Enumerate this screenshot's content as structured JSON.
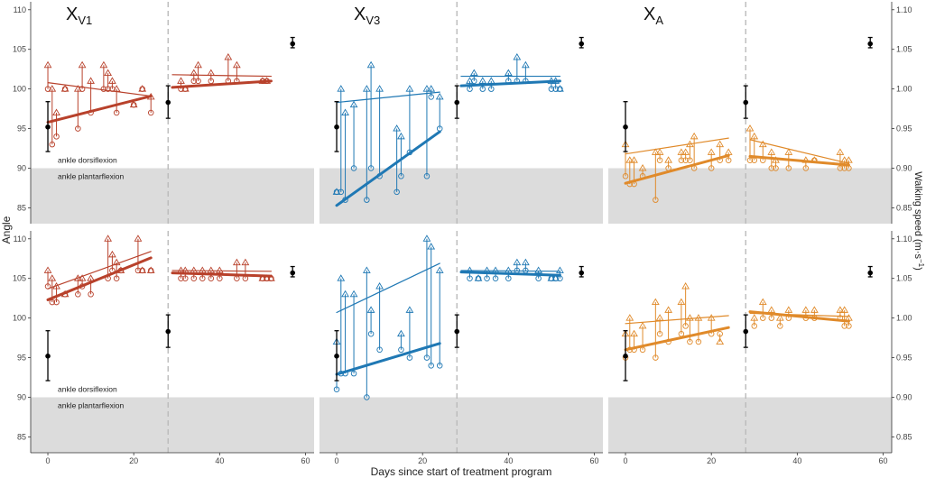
{
  "chart_data": {
    "type": "scatter",
    "title": "",
    "xlabel": "Days since start of treatment program",
    "ylabel_left": "Angle",
    "ylabel_right": "Walking speed (m·s",
    "ylabel_right_sup": "−1",
    "ylabel_right_close": ")",
    "xlim": [
      -4,
      62
    ],
    "x_ticks": [
      "0",
      "20",
      "40",
      "60"
    ],
    "x_tick_values": [
      0,
      20,
      40,
      60
    ],
    "phase_split_day": 28,
    "rows": [
      {
        "ylim": [
          83,
          111
        ],
        "y_ticks": [
          "85",
          "90",
          "95",
          "100",
          "105",
          "110"
        ],
        "y_tick_values": [
          85,
          90,
          95,
          100,
          105,
          110
        ],
        "right_ticks": [
          "0.85",
          "0.90",
          "0.95",
          "1.00",
          "1.05",
          "1.10"
        ],
        "shaded_below": 90,
        "annot_upper": "ankle dorsiflexion",
        "annot_lower": "ankle plantarflexion"
      },
      {
        "ylim": [
          83,
          111
        ],
        "y_ticks": [
          "85",
          "90",
          "95",
          "100",
          "105",
          "110"
        ],
        "y_tick_values": [
          85,
          90,
          95,
          100,
          105,
          110
        ],
        "right_ticks": [
          "0.85",
          "0.90",
          "0.95",
          "1.00",
          "1.05",
          "1.10"
        ],
        "shaded_below": 90,
        "annot_upper": "ankle dorsiflexion",
        "annot_lower": "ankle plantarflexion"
      }
    ],
    "columns": [
      {
        "label": "X",
        "sub": "V1",
        "color": "#b8412b"
      },
      {
        "label": "X",
        "sub": "V3",
        "color": "#1f78b4"
      },
      {
        "label": "X",
        "sub": "A",
        "color": "#e08a2a"
      }
    ],
    "speed_bars": {
      "pre": {
        "day": 0,
        "mean": 0.952,
        "lo": 0.921,
        "hi": 0.984
      },
      "mid": {
        "day": 28,
        "mean": 0.983,
        "lo": 0.963,
        "hi": 1.004
      },
      "post": {
        "day": 57,
        "mean": 1.057,
        "lo": 1.052,
        "hi": 1.065
      }
    },
    "panels": [
      {
        "row": 0,
        "col": 0,
        "pre_points": [
          [
            0,
            100,
            103
          ],
          [
            1,
            93,
            100
          ],
          [
            2,
            94,
            97
          ],
          [
            4,
            100,
            100
          ],
          [
            7,
            95,
            100
          ],
          [
            8,
            100,
            103
          ],
          [
            10,
            97,
            101
          ],
          [
            13,
            100,
            103
          ],
          [
            14,
            100,
            102
          ],
          [
            15,
            100,
            101
          ],
          [
            16,
            97,
            100
          ],
          [
            20,
            98,
            98
          ],
          [
            22,
            100,
            100
          ],
          [
            24,
            97,
            99
          ]
        ],
        "post_points": [
          [
            31,
            100,
            101
          ],
          [
            32,
            100,
            100
          ],
          [
            34,
            101,
            102
          ],
          [
            35,
            101,
            103
          ],
          [
            38,
            101,
            102
          ],
          [
            42,
            101,
            104
          ],
          [
            44,
            101,
            103
          ],
          [
            50,
            101,
            101
          ],
          [
            51,
            101,
            101
          ]
        ],
        "pre_thick": [
          [
            0,
            95.8
          ],
          [
            24,
            99.1
          ]
        ],
        "pre_thin": [
          [
            0,
            100.8
          ],
          [
            24,
            99.1
          ]
        ],
        "post_thick": [
          [
            29,
            100.2
          ],
          [
            52,
            101.0
          ]
        ],
        "post_thin": [
          [
            29,
            101.8
          ],
          [
            52,
            101.6
          ]
        ]
      },
      {
        "row": 0,
        "col": 1,
        "pre_points": [
          [
            0,
            87,
            87
          ],
          [
            1,
            87,
            100
          ],
          [
            2,
            86,
            97
          ],
          [
            4,
            90,
            98
          ],
          [
            7,
            86,
            100
          ],
          [
            8,
            90,
            103
          ],
          [
            10,
            89,
            100
          ],
          [
            14,
            87,
            95
          ],
          [
            15,
            89,
            94
          ],
          [
            17,
            92,
            100
          ],
          [
            21,
            89,
            100
          ],
          [
            22,
            99,
            100
          ],
          [
            24,
            95,
            99
          ]
        ],
        "post_points": [
          [
            31,
            100,
            101
          ],
          [
            32,
            101,
            102
          ],
          [
            34,
            100,
            101
          ],
          [
            36,
            100,
            101
          ],
          [
            40,
            101,
            102
          ],
          [
            42,
            101,
            104
          ],
          [
            44,
            101,
            103
          ],
          [
            50,
            100,
            101
          ],
          [
            51,
            100,
            101
          ],
          [
            52,
            100,
            100
          ]
        ],
        "pre_thick": [
          [
            0,
            85.3
          ],
          [
            24,
            94.6
          ]
        ],
        "pre_thin": [
          [
            0,
            98.3
          ],
          [
            24,
            99.6
          ]
        ],
        "post_thick": [
          [
            29,
            100.4
          ],
          [
            52,
            101.0
          ]
        ],
        "post_thin": [
          [
            29,
            101.6
          ],
          [
            52,
            101.6
          ]
        ]
      },
      {
        "row": 0,
        "col": 2,
        "pre_points": [
          [
            0,
            89,
            93
          ],
          [
            1,
            88,
            91
          ],
          [
            2,
            88,
            91
          ],
          [
            4,
            89,
            90
          ],
          [
            7,
            86,
            92
          ],
          [
            8,
            91,
            92
          ],
          [
            10,
            90,
            91
          ],
          [
            13,
            91,
            92
          ],
          [
            14,
            91,
            92
          ],
          [
            15,
            91,
            93
          ],
          [
            16,
            90,
            94
          ],
          [
            20,
            90,
            92
          ],
          [
            22,
            91,
            93
          ],
          [
            24,
            91,
            92
          ]
        ],
        "post_points": [
          [
            29,
            91,
            95
          ],
          [
            30,
            91,
            94
          ],
          [
            32,
            91,
            93
          ],
          [
            34,
            90,
            92
          ],
          [
            35,
            90,
            91
          ],
          [
            38,
            90,
            92
          ],
          [
            42,
            90,
            91
          ],
          [
            44,
            91,
            91
          ],
          [
            50,
            90,
            92
          ],
          [
            51,
            90,
            91
          ],
          [
            52,
            90,
            91
          ]
        ],
        "pre_thick": [
          [
            0,
            88.1
          ],
          [
            24,
            91.6
          ]
        ],
        "pre_thin": [
          [
            0,
            91.8
          ],
          [
            24,
            93.8
          ]
        ],
        "post_thick": [
          [
            29,
            91.5
          ],
          [
            52,
            90.4
          ]
        ],
        "post_thin": [
          [
            29,
            93.6
          ],
          [
            52,
            90.6
          ]
        ]
      },
      {
        "row": 1,
        "col": 0,
        "pre_points": [
          [
            0,
            104,
            106
          ],
          [
            1,
            102,
            105
          ],
          [
            2,
            102,
            104
          ],
          [
            4,
            103,
            103
          ],
          [
            7,
            103,
            105
          ],
          [
            8,
            104,
            105
          ],
          [
            10,
            103,
            105
          ],
          [
            14,
            105,
            110
          ],
          [
            15,
            106,
            108
          ],
          [
            16,
            105,
            107
          ],
          [
            17,
            106,
            106
          ],
          [
            21,
            106,
            110
          ],
          [
            22,
            106,
            106
          ],
          [
            24,
            106,
            106
          ]
        ],
        "post_points": [
          [
            31,
            105,
            106
          ],
          [
            32,
            105,
            106
          ],
          [
            34,
            105,
            106
          ],
          [
            36,
            105,
            106
          ],
          [
            38,
            105,
            106
          ],
          [
            40,
            105,
            106
          ],
          [
            44,
            105,
            107
          ],
          [
            46,
            105,
            107
          ],
          [
            50,
            105,
            105
          ],
          [
            51,
            105,
            105
          ],
          [
            52,
            105,
            105
          ]
        ],
        "pre_thick": [
          [
            0,
            102.3
          ],
          [
            24,
            107.6
          ]
        ],
        "pre_thin": [
          [
            0,
            103.7
          ],
          [
            24,
            108.4
          ]
        ],
        "post_thick": [
          [
            29,
            105.7
          ],
          [
            52,
            105.3
          ]
        ],
        "post_thin": [
          [
            29,
            106.0
          ],
          [
            52,
            105.9
          ]
        ]
      },
      {
        "row": 1,
        "col": 1,
        "pre_points": [
          [
            0,
            91,
            97
          ],
          [
            1,
            93,
            105
          ],
          [
            2,
            93,
            103
          ],
          [
            4,
            93,
            103
          ],
          [
            7,
            90,
            106
          ],
          [
            8,
            98,
            101
          ],
          [
            10,
            96,
            104
          ],
          [
            15,
            96,
            98
          ],
          [
            17,
            95,
            101
          ],
          [
            21,
            95,
            110
          ],
          [
            22,
            94,
            109
          ],
          [
            24,
            94,
            106
          ]
        ],
        "post_points": [
          [
            31,
            105,
            106
          ],
          [
            33,
            105,
            105
          ],
          [
            35,
            105,
            106
          ],
          [
            37,
            105,
            106
          ],
          [
            40,
            105,
            106
          ],
          [
            42,
            106,
            107
          ],
          [
            44,
            106,
            107
          ],
          [
            47,
            105,
            106
          ],
          [
            50,
            105,
            105
          ],
          [
            51,
            105,
            105
          ],
          [
            52,
            105,
            106
          ]
        ],
        "pre_thick": [
          [
            0,
            92.9
          ],
          [
            24,
            96.8
          ]
        ],
        "pre_thin": [
          [
            0,
            100.7
          ],
          [
            24,
            106.9
          ]
        ],
        "post_thick": [
          [
            29,
            105.8
          ],
          [
            52,
            105.4
          ]
        ],
        "post_thin": [
          [
            29,
            106.0
          ],
          [
            52,
            105.9
          ]
        ]
      },
      {
        "row": 1,
        "col": 2,
        "pre_points": [
          [
            0,
            95,
            98
          ],
          [
            1,
            96,
            100
          ],
          [
            2,
            96,
            98
          ],
          [
            4,
            96,
            99
          ],
          [
            7,
            95,
            102
          ],
          [
            8,
            98,
            100
          ],
          [
            10,
            97,
            101
          ],
          [
            13,
            98,
            102
          ],
          [
            14,
            99,
            104
          ],
          [
            15,
            97,
            100
          ],
          [
            17,
            97,
            100
          ],
          [
            20,
            98,
            100
          ],
          [
            22,
            98,
            97
          ]
        ],
        "post_points": [
          [
            30,
            99,
            100
          ],
          [
            32,
            100,
            102
          ],
          [
            34,
            100,
            101
          ],
          [
            36,
            99,
            100
          ],
          [
            38,
            100,
            101
          ],
          [
            42,
            100,
            101
          ],
          [
            44,
            100,
            101
          ],
          [
            50,
            100,
            101
          ],
          [
            51,
            99,
            101
          ],
          [
            52,
            99,
            100
          ]
        ],
        "pre_thick": [
          [
            0,
            96.0
          ],
          [
            24,
            98.8
          ]
        ],
        "pre_thin": [
          [
            0,
            99.3
          ],
          [
            24,
            100.3
          ]
        ],
        "post_thick": [
          [
            29,
            100.8
          ],
          [
            52,
            99.6
          ]
        ],
        "post_thin": [
          [
            29,
            100.6
          ],
          [
            52,
            100.2
          ]
        ]
      }
    ]
  }
}
